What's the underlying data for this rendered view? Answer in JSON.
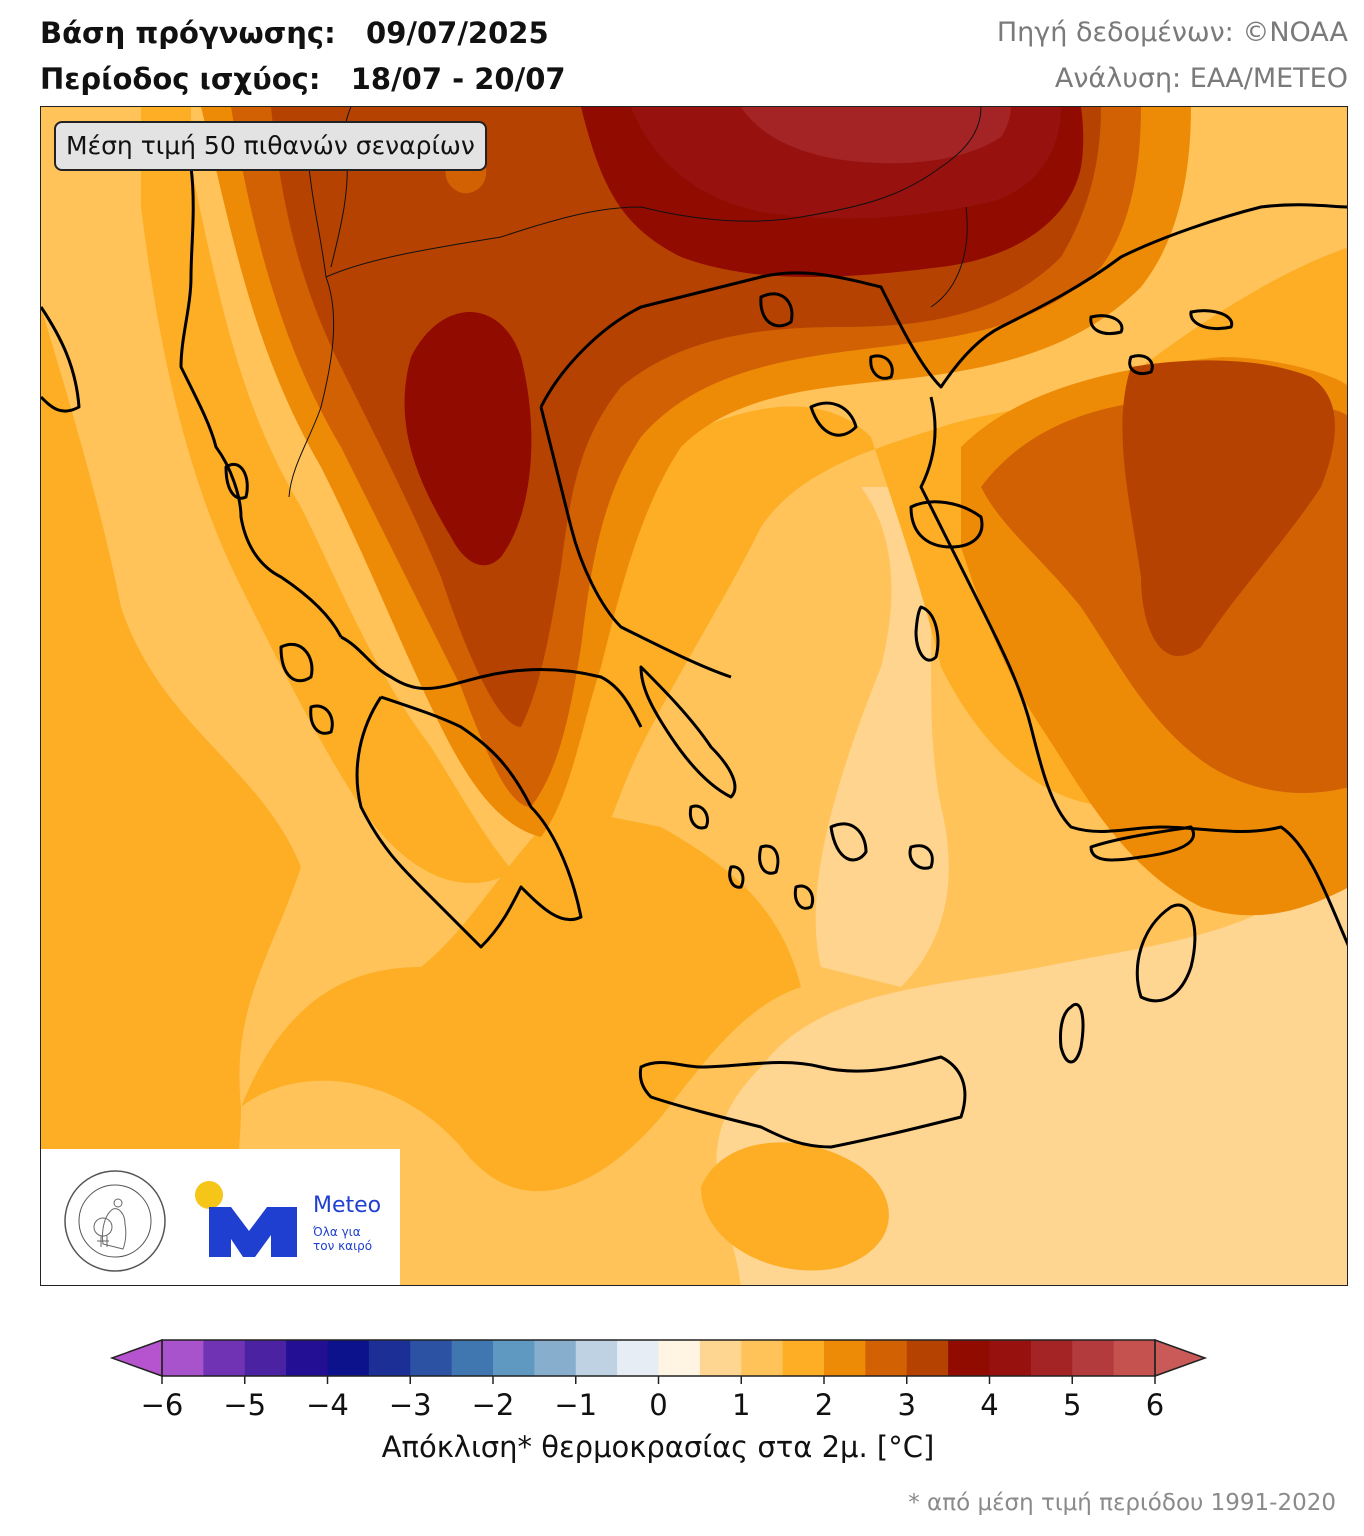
{
  "header": {
    "forecast_base_label": "Βάση πρόγνωσης:",
    "forecast_base_value": "09/07/2025",
    "validity_label": "Περίοδος ισχύος:",
    "validity_value": "18/07 - 20/07",
    "data_source": "Πηγή δεδομένων: ©NOAA",
    "analysis": "Ανάλυση: ΕΑΑ/METEO"
  },
  "map": {
    "scenario_box": "Μέση τιμή 50 πιθανών σεναρίων",
    "region": "Greece / Aegean / Balkans / W. Turkey",
    "field": "2m temperature anomaly, ensemble mean"
  },
  "logos": {
    "noa_seal_text_top": "ΕΘΝΙΚΟΝ ΑΣΤΕΡΟΣΚΟΠΕΙΟΝ ΑΘΗΝΩΝ",
    "noa_seal_text_bottom": "NATIONAL OBSERVATORY OF ATHENS",
    "meteo_name": "Meteo",
    "meteo_tagline_1": "Όλα για",
    "meteo_tagline_2": "τον καιρό"
  },
  "colorbar": {
    "label": "Απόκλιση* θερμοκρασίας στα 2μ. [°C]",
    "footnote": "* από μέση τιμή περιόδου 1991-2020",
    "ticks": [
      "−6",
      "−5",
      "−4",
      "−3",
      "−2",
      "−1",
      "0",
      "1",
      "2",
      "3",
      "4",
      "5",
      "6"
    ],
    "bounds": [
      -6,
      6
    ],
    "step": 0.5,
    "under_color": "#b653cf",
    "over_color": "#c95a58",
    "bins": [
      "#a852cc",
      "#7033b4",
      "#4a22a2",
      "#230f94",
      "#0c128c",
      "#1c2f96",
      "#2b52a3",
      "#4077b0",
      "#5f98c1",
      "#88aecd",
      "#bed2e3",
      "#e6edf4",
      "#fff5e2",
      "#ffd592",
      "#ffc35a",
      "#fdae25",
      "#ee8b06",
      "#d26103",
      "#b64202",
      "#910b01",
      "#97110f",
      "#a42425",
      "#b43b3d",
      "#c6524f"
    ]
  },
  "chart_data": {
    "type": "heatmap",
    "title": "Μέση τιμή 50 πιθανών σεναρίων",
    "variable": "Απόκλιση* θερμοκρασίας στα 2μ. [°C]",
    "colorbar_range": [
      -6,
      6
    ],
    "levels_step": 0.5,
    "regions": [
      {
        "area": "N. Balkans (Serbia/Bulgaria, top center)",
        "anomaly_range": [
          4.0,
          5.0
        ]
      },
      {
        "area": "W. Macedonia / Pindus core",
        "anomaly_range": [
          3.5,
          4.0
        ]
      },
      {
        "area": "Epirus / Thessaly / Central Greece",
        "anomaly_range": [
          2.5,
          3.5
        ]
      },
      {
        "area": "W. Turkey inland (Anatolia)",
        "anomaly_range": [
          2.5,
          3.5
        ]
      },
      {
        "area": "Thrace / Sea of Marmara",
        "anomaly_range": [
          1.5,
          2.5
        ]
      },
      {
        "area": "Central Aegean / Cyclades",
        "anomaly_range": [
          1.0,
          2.0
        ]
      },
      {
        "area": "Ionian Sea",
        "anomaly_range": [
          1.0,
          2.0
        ]
      },
      {
        "area": "South of Crete / SE Aegean",
        "anomaly_range": [
          0.5,
          1.5
        ]
      }
    ]
  }
}
